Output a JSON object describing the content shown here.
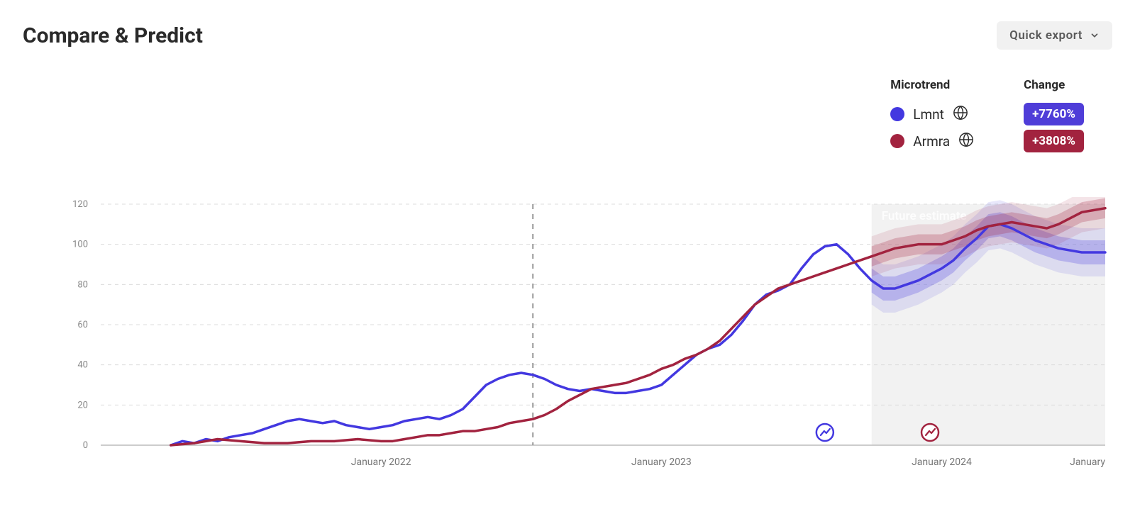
{
  "header": {
    "title": "Compare & Predict",
    "export_label": "Quick export"
  },
  "legend": {
    "microtrend_header": "Microtrend",
    "change_header": "Change",
    "series": [
      {
        "label": "Lmnt",
        "color": "#4338e0",
        "change": "+7760%",
        "badge_bg": "#4f3dd8"
      },
      {
        "label": "Armra",
        "color": "#a2233f",
        "change": "+3808%",
        "badge_bg": "#a2233f"
      }
    ]
  },
  "chart": {
    "type": "line",
    "background_color": "#ffffff",
    "grid_color": "#dcdcdc",
    "axis_color": "#bcbcbc",
    "future_region_color": "#f2f2f2",
    "future_label": "Future estimate",
    "future_label_color": "#ffffff",
    "ylim": [
      0,
      120
    ],
    "ytick_step": 20,
    "yticks": [
      0,
      20,
      40,
      60,
      80,
      100,
      120
    ],
    "x_domain": [
      0,
      43
    ],
    "x_split_future": 33,
    "x_vertical_marker": 18.5,
    "xticks": [
      {
        "pos": 12,
        "label": "January 2022"
      },
      {
        "pos": 24,
        "label": "January 2023"
      },
      {
        "pos": 36,
        "label": "January 2024"
      },
      {
        "pos": 43,
        "label": "January"
      }
    ],
    "line_width": 3.5,
    "band_opacity_inner": 0.25,
    "band_opacity_outer": 0.12,
    "series_markers": [
      {
        "color": "#4338e0",
        "x": 31
      },
      {
        "color": "#a2233f",
        "x": 35.5
      }
    ],
    "series": [
      {
        "name": "Lmnt",
        "color": "#4338e0",
        "points": [
          [
            3,
            0
          ],
          [
            3.5,
            2
          ],
          [
            4,
            1
          ],
          [
            4.5,
            3
          ],
          [
            5,
            2
          ],
          [
            5.5,
            4
          ],
          [
            6,
            5
          ],
          [
            6.5,
            6
          ],
          [
            7,
            8
          ],
          [
            7.5,
            10
          ],
          [
            8,
            12
          ],
          [
            8.5,
            13
          ],
          [
            9,
            12
          ],
          [
            9.5,
            11
          ],
          [
            10,
            12
          ],
          [
            10.5,
            10
          ],
          [
            11,
            9
          ],
          [
            11.5,
            8
          ],
          [
            12,
            9
          ],
          [
            12.5,
            10
          ],
          [
            13,
            12
          ],
          [
            13.5,
            13
          ],
          [
            14,
            14
          ],
          [
            14.5,
            13
          ],
          [
            15,
            15
          ],
          [
            15.5,
            18
          ],
          [
            16,
            24
          ],
          [
            16.5,
            30
          ],
          [
            17,
            33
          ],
          [
            17.5,
            35
          ],
          [
            18,
            36
          ],
          [
            18.5,
            35
          ],
          [
            19,
            33
          ],
          [
            19.5,
            30
          ],
          [
            20,
            28
          ],
          [
            20.5,
            27
          ],
          [
            21,
            28
          ],
          [
            21.5,
            27
          ],
          [
            22,
            26
          ],
          [
            22.5,
            26
          ],
          [
            23,
            27
          ],
          [
            23.5,
            28
          ],
          [
            24,
            30
          ],
          [
            24.5,
            35
          ],
          [
            25,
            40
          ],
          [
            25.5,
            45
          ],
          [
            26,
            48
          ],
          [
            26.5,
            50
          ],
          [
            27,
            55
          ],
          [
            27.5,
            62
          ],
          [
            28,
            70
          ],
          [
            28.5,
            75
          ],
          [
            29,
            77
          ],
          [
            29.5,
            80
          ],
          [
            30,
            88
          ],
          [
            30.5,
            95
          ],
          [
            31,
            99
          ],
          [
            31.5,
            100
          ],
          [
            32,
            95
          ],
          [
            32.5,
            88
          ],
          [
            33,
            82
          ],
          [
            33.5,
            78
          ],
          [
            34,
            78
          ],
          [
            34.5,
            80
          ],
          [
            35,
            82
          ],
          [
            35.5,
            85
          ],
          [
            36,
            88
          ],
          [
            36.5,
            92
          ],
          [
            37,
            98
          ],
          [
            37.5,
            103
          ],
          [
            38,
            109
          ],
          [
            38.5,
            110
          ],
          [
            39,
            108
          ],
          [
            39.5,
            105
          ],
          [
            40,
            102
          ],
          [
            40.5,
            100
          ],
          [
            41,
            98
          ],
          [
            41.5,
            97
          ],
          [
            42,
            96
          ],
          [
            42.5,
            96
          ],
          [
            43,
            96
          ]
        ],
        "future_band_inner": 6,
        "future_band_outer": 12
      },
      {
        "name": "Armra",
        "color": "#a2233f",
        "points": [
          [
            3,
            0
          ],
          [
            4,
            1
          ],
          [
            5,
            3
          ],
          [
            6,
            2
          ],
          [
            7,
            1
          ],
          [
            8,
            1
          ],
          [
            9,
            2
          ],
          [
            10,
            2
          ],
          [
            11,
            3
          ],
          [
            12,
            2
          ],
          [
            12.5,
            2
          ],
          [
            13,
            3
          ],
          [
            13.5,
            4
          ],
          [
            14,
            5
          ],
          [
            14.5,
            5
          ],
          [
            15,
            6
          ],
          [
            15.5,
            7
          ],
          [
            16,
            7
          ],
          [
            16.5,
            8
          ],
          [
            17,
            9
          ],
          [
            17.5,
            11
          ],
          [
            18,
            12
          ],
          [
            18.5,
            13
          ],
          [
            19,
            15
          ],
          [
            19.5,
            18
          ],
          [
            20,
            22
          ],
          [
            20.5,
            25
          ],
          [
            21,
            28
          ],
          [
            21.5,
            29
          ],
          [
            22,
            30
          ],
          [
            22.5,
            31
          ],
          [
            23,
            33
          ],
          [
            23.5,
            35
          ],
          [
            24,
            38
          ],
          [
            24.5,
            40
          ],
          [
            25,
            43
          ],
          [
            25.5,
            45
          ],
          [
            26,
            48
          ],
          [
            26.5,
            52
          ],
          [
            27,
            58
          ],
          [
            27.5,
            64
          ],
          [
            28,
            70
          ],
          [
            28.5,
            74
          ],
          [
            29,
            78
          ],
          [
            29.5,
            80
          ],
          [
            30,
            82
          ],
          [
            30.5,
            84
          ],
          [
            31,
            86
          ],
          [
            31.5,
            88
          ],
          [
            32,
            90
          ],
          [
            32.5,
            92
          ],
          [
            33,
            94
          ],
          [
            33.5,
            96
          ],
          [
            34,
            98
          ],
          [
            34.5,
            99
          ],
          [
            35,
            100
          ],
          [
            35.5,
            100
          ],
          [
            36,
            100
          ],
          [
            36.5,
            102
          ],
          [
            37,
            104
          ],
          [
            37.5,
            107
          ],
          [
            38,
            109
          ],
          [
            38.5,
            110
          ],
          [
            39,
            111
          ],
          [
            39.5,
            110
          ],
          [
            40,
            109
          ],
          [
            40.5,
            108
          ],
          [
            41,
            110
          ],
          [
            41.5,
            113
          ],
          [
            42,
            116
          ],
          [
            42.5,
            117
          ],
          [
            43,
            118
          ]
        ],
        "future_band_inner": 5,
        "future_band_outer": 10
      }
    ]
  }
}
